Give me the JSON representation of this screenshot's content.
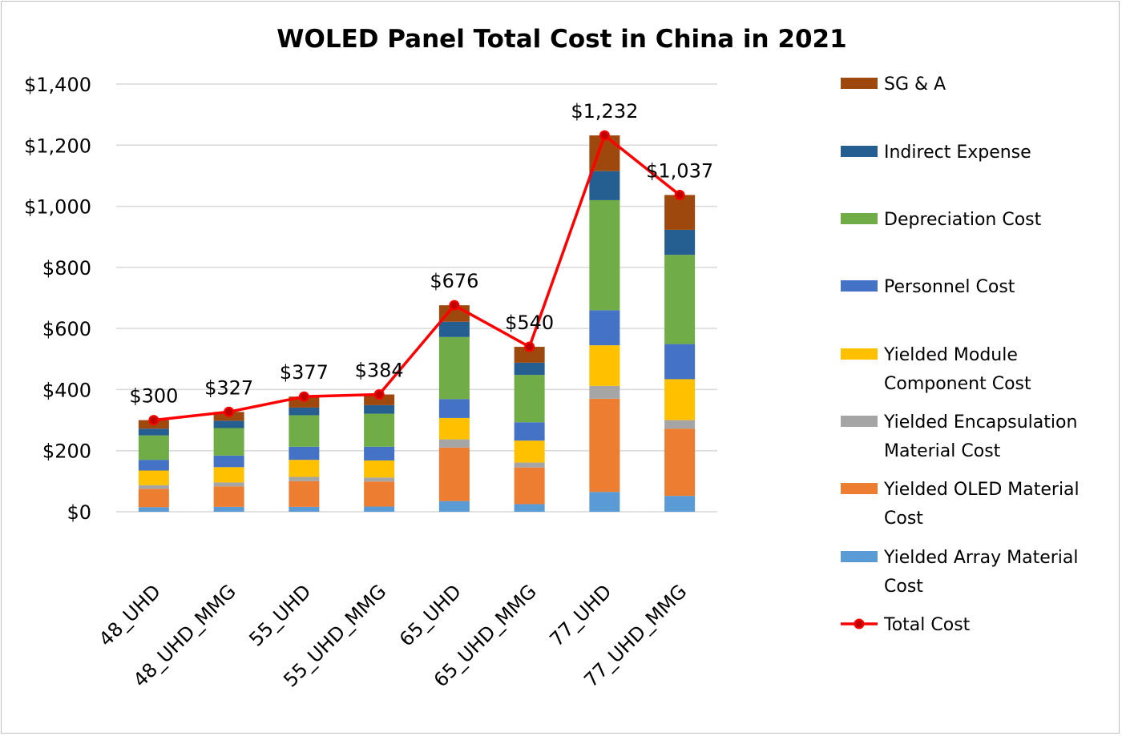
{
  "chart_data": {
    "type": "bar",
    "stacked": true,
    "title": "WOLED Panel Total Cost in China in 2021",
    "xlabel": "",
    "ylabel": "",
    "ylim": [
      0,
      1400
    ],
    "y_ticks": [
      {
        "value": 0,
        "label": "$0"
      },
      {
        "value": 200,
        "label": "$200"
      },
      {
        "value": 400,
        "label": "$400"
      },
      {
        "value": 600,
        "label": "$600"
      },
      {
        "value": 800,
        "label": "$800"
      },
      {
        "value": 1000,
        "label": "$1,000"
      },
      {
        "value": 1200,
        "label": "$1,200"
      },
      {
        "value": 1400,
        "label": "$1,400"
      }
    ],
    "grid": true,
    "legend_position": "right",
    "categories": [
      "48_UHD",
      "48_UHD_MMG",
      "55_UHD",
      "55_UHD_MMG",
      "65_UHD",
      "65_UHD_MMG",
      "77_UHD",
      "77_UHD_MMG"
    ],
    "series": [
      {
        "name": "Yielded Array Material Cost",
        "color": "#5b9bd5",
        "values": [
          15,
          16,
          16,
          17,
          35,
          25,
          65,
          52
        ]
      },
      {
        "name": "Yielded OLED Material Cost",
        "color": "#ed7d31",
        "values": [
          60,
          67,
          84,
          82,
          175,
          120,
          305,
          220
        ]
      },
      {
        "name": "Yielded Encapsulation Material Cost",
        "color": "#a5a5a5",
        "values": [
          12,
          13,
          14,
          13,
          27,
          16,
          42,
          28
        ]
      },
      {
        "name": "Yielded Module Component Cost",
        "color": "#ffc000",
        "values": [
          48,
          50,
          56,
          56,
          70,
          72,
          133,
          134
        ]
      },
      {
        "name": "Personnel Cost",
        "color": "#4472c4",
        "values": [
          35,
          38,
          43,
          45,
          62,
          60,
          115,
          115
        ]
      },
      {
        "name": "Depreciation Cost",
        "color": "#70ad47",
        "values": [
          80,
          90,
          103,
          108,
          203,
          155,
          360,
          292
        ]
      },
      {
        "name": "Indirect Expense",
        "color": "#255e91",
        "values": [
          22,
          24,
          25,
          28,
          50,
          40,
          95,
          82
        ]
      },
      {
        "name": "SG & A",
        "color": "#9e480e",
        "values": [
          28,
          29,
          36,
          35,
          54,
          52,
          117,
          114
        ]
      }
    ],
    "total_series": {
      "name": "Total Cost",
      "line_color": "#ff0000",
      "marker_fill": "#c00000",
      "values": [
        300,
        327,
        377,
        384,
        676,
        540,
        1232,
        1037
      ],
      "labels": [
        "$300",
        "$327",
        "$377",
        "$384",
        "$676",
        "$540",
        "$1,232",
        "$1,037"
      ]
    },
    "legend": [
      {
        "key": "SG & A",
        "lines": [
          "SG & A"
        ],
        "color": "#9e480e",
        "kind": "bar"
      },
      {
        "key": "Indirect Expense",
        "lines": [
          "Indirect Expense"
        ],
        "color": "#255e91",
        "kind": "bar"
      },
      {
        "key": "Depreciation Cost",
        "lines": [
          "Depreciation Cost"
        ],
        "color": "#70ad47",
        "kind": "bar"
      },
      {
        "key": "Personnel Cost",
        "lines": [
          "Personnel Cost"
        ],
        "color": "#4472c4",
        "kind": "bar"
      },
      {
        "key": "Yielded Module Component Cost",
        "lines": [
          "Yielded Module",
          "Component Cost"
        ],
        "color": "#ffc000",
        "kind": "bar"
      },
      {
        "key": "Yielded Encapsulation Material Cost",
        "lines": [
          "Yielded Encapsulation",
          "Material Cost"
        ],
        "color": "#a5a5a5",
        "kind": "bar"
      },
      {
        "key": "Yielded OLED Material Cost",
        "lines": [
          "Yielded OLED Material",
          "Cost"
        ],
        "color": "#ed7d31",
        "kind": "bar"
      },
      {
        "key": "Yielded Array Material Cost",
        "lines": [
          "Yielded Array Material",
          "Cost"
        ],
        "color": "#5b9bd5",
        "kind": "bar"
      },
      {
        "key": "Total Cost",
        "lines": [
          "Total Cost"
        ],
        "color": "#ff0000",
        "kind": "line"
      }
    ]
  }
}
